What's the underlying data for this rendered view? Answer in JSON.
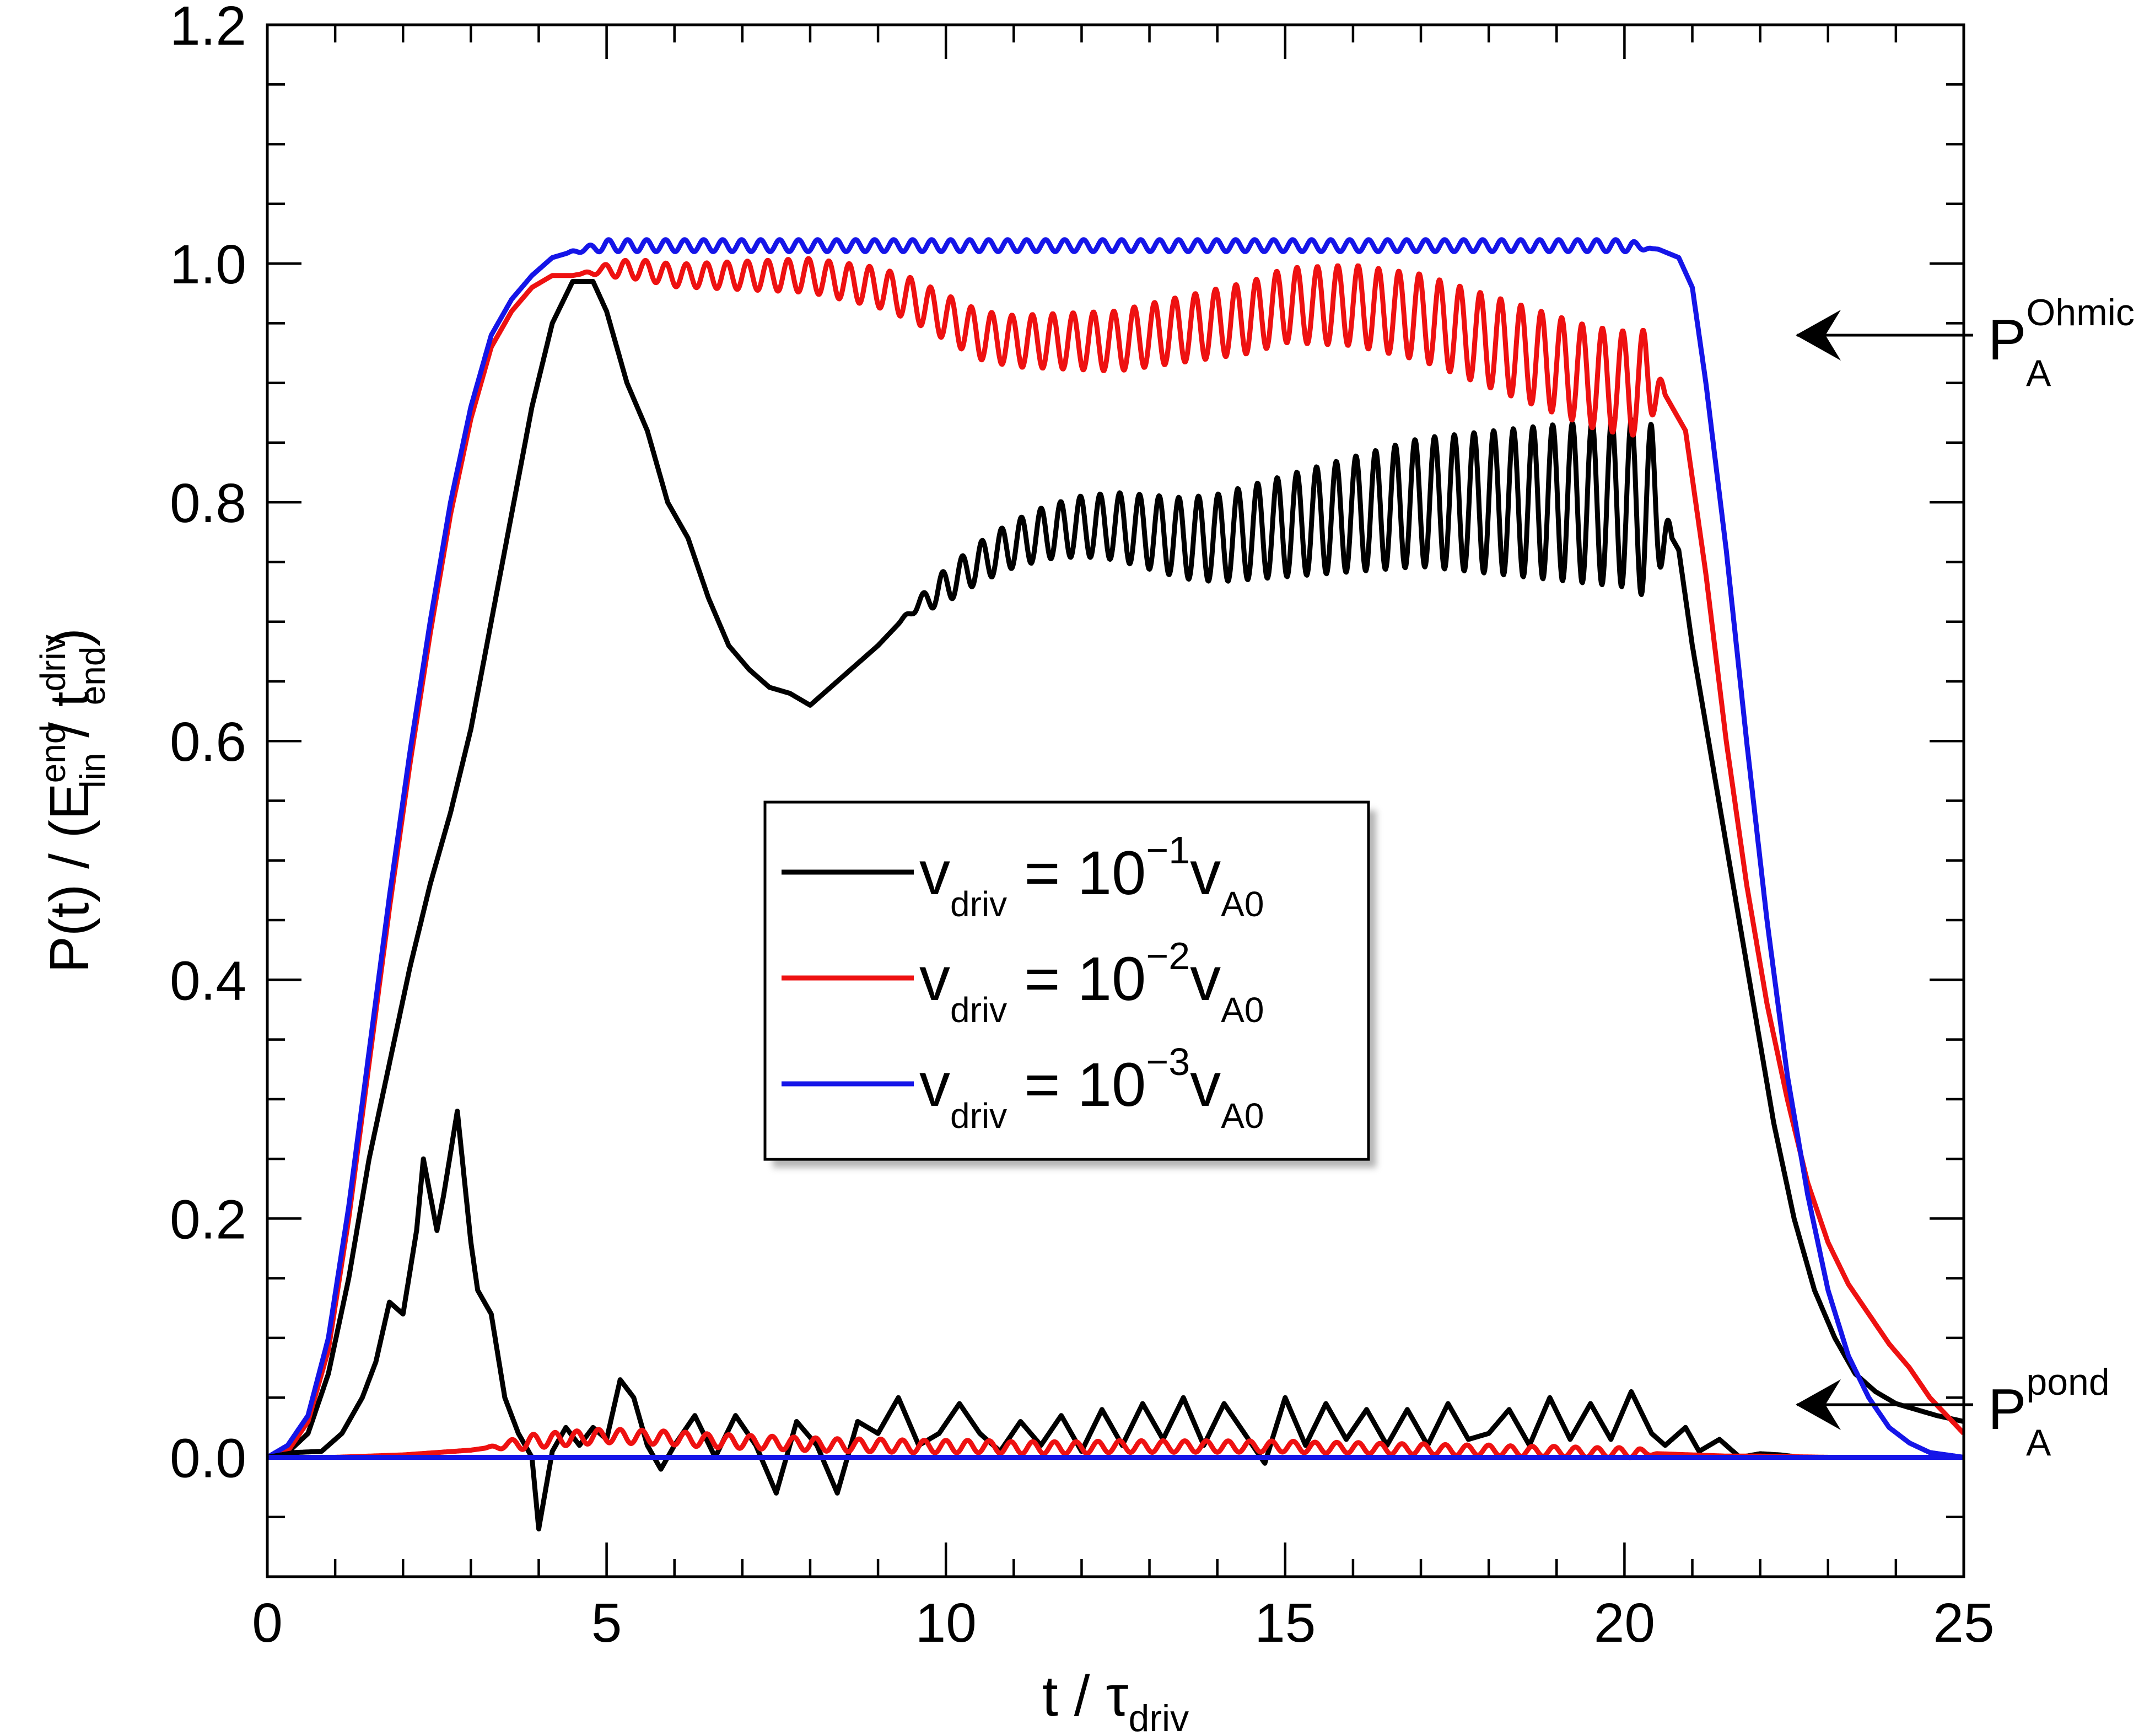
{
  "chart_data": {
    "type": "line",
    "xlabel": "t / τ",
    "xlabel_sub": "driv",
    "ylabel": {
      "p1": "P(t) / (E",
      "p1_sup": "end",
      "p1_sub": "lin",
      "p2": " / t",
      "p2_sup": "driv",
      "p2_sub": "end",
      "p3": ")"
    },
    "xlim": [
      0,
      25
    ],
    "ylim": [
      -0.1,
      1.2
    ],
    "xticks": [
      "0",
      "5",
      "10",
      "15",
      "20",
      "25"
    ],
    "yticks": [
      "0.0",
      "0.2",
      "0.4",
      "0.6",
      "0.8",
      "1.0",
      "1.2"
    ],
    "legend": {
      "location": "center",
      "entries": [
        {
          "color": "#000000",
          "base": "v",
          "sub": "driv",
          "eq": " = 10",
          "exp": "−1",
          "v": "v",
          "vsub": "A0"
        },
        {
          "color": "#ee1111",
          "base": "v",
          "sub": "driv",
          "eq": " = 10",
          "exp": "−2",
          "v": "v",
          "vsub": "A0"
        },
        {
          "color": "#1515e8",
          "base": "v",
          "sub": "driv",
          "eq": " = 10",
          "exp": "−3",
          "v": "v",
          "vsub": "A0"
        }
      ]
    },
    "annotations": [
      {
        "text": "P",
        "sub": "A",
        "sup": "Ohmic",
        "y": 0.94
      },
      {
        "text": "P",
        "sub": "A",
        "sup": "pond",
        "y": 0.045
      }
    ],
    "series": [
      {
        "name": "v_driv = 10^-1 v_A0 (Ohmic)",
        "color": "#000000",
        "x": [
          0,
          0.3,
          0.6,
          0.9,
          1.2,
          1.5,
          1.8,
          2.1,
          2.4,
          2.7,
          3.0,
          3.3,
          3.6,
          3.9,
          4.2,
          4.5,
          4.8,
          5.0,
          5.3,
          5.6,
          5.9,
          6.2,
          6.5,
          6.8,
          7.1,
          7.4,
          7.7,
          8.0,
          8.3,
          8.6,
          9.0,
          9.5,
          10.0,
          10.5,
          11.0,
          11.5,
          12.0,
          12.5,
          13.0,
          13.5,
          14.0,
          14.5,
          15.0,
          15.5,
          16.0,
          16.5,
          17.0,
          17.5,
          18.0,
          18.5,
          19.0,
          19.5,
          20.0,
          20.5,
          20.8,
          21.0,
          21.3,
          21.6,
          21.9,
          22.2,
          22.5,
          22.8,
          23.1,
          23.4,
          23.7,
          24.0,
          24.3,
          24.6,
          25.0
        ],
        "y": [
          0.0,
          0.004,
          0.02,
          0.07,
          0.15,
          0.25,
          0.33,
          0.41,
          0.48,
          0.54,
          0.61,
          0.7,
          0.79,
          0.88,
          0.95,
          0.985,
          0.985,
          0.96,
          0.9,
          0.86,
          0.8,
          0.77,
          0.72,
          0.68,
          0.66,
          0.645,
          0.64,
          0.63,
          0.645,
          0.66,
          0.68,
          0.71,
          0.73,
          0.75,
          0.765,
          0.775,
          0.78,
          0.78,
          0.775,
          0.77,
          0.77,
          0.775,
          0.78,
          0.785,
          0.79,
          0.795,
          0.8,
          0.8,
          0.8,
          0.8,
          0.8,
          0.8,
          0.8,
          0.79,
          0.76,
          0.68,
          0.58,
          0.48,
          0.38,
          0.28,
          0.2,
          0.14,
          0.1,
          0.07,
          0.055,
          0.045,
          0.04,
          0.035,
          0.03
        ],
        "osc": [
          {
            "x0": 9.3,
            "x1": 20.7,
            "amp0": 0.01,
            "amp1": 0.075,
            "period": 0.29
          }
        ]
      },
      {
        "name": "v_driv = 10^-2 v_A0 (Ohmic)",
        "color": "#ee1111",
        "x": [
          0,
          0.3,
          0.6,
          0.9,
          1.2,
          1.5,
          1.8,
          2.1,
          2.4,
          2.7,
          3.0,
          3.3,
          3.6,
          3.9,
          4.2,
          4.5,
          5.0,
          5.5,
          6.0,
          6.5,
          7.0,
          7.5,
          8.0,
          8.5,
          9.0,
          9.5,
          10.0,
          10.5,
          11.0,
          11.5,
          12.0,
          12.5,
          13.0,
          13.5,
          14.0,
          14.5,
          15.0,
          15.5,
          16.0,
          16.5,
          17.0,
          17.5,
          18.0,
          18.5,
          19.0,
          19.5,
          20.0,
          20.5,
          20.9,
          21.2,
          21.5,
          21.8,
          22.1,
          22.4,
          22.7,
          23.0,
          23.3,
          23.6,
          23.9,
          24.2,
          24.5,
          25.0
        ],
        "y": [
          0.0,
          0.005,
          0.03,
          0.09,
          0.2,
          0.33,
          0.46,
          0.58,
          0.69,
          0.79,
          0.87,
          0.93,
          0.96,
          0.98,
          0.99,
          0.99,
          0.995,
          0.995,
          0.99,
          0.99,
          0.99,
          0.99,
          0.99,
          0.985,
          0.98,
          0.97,
          0.955,
          0.94,
          0.935,
          0.935,
          0.935,
          0.935,
          0.94,
          0.945,
          0.95,
          0.955,
          0.965,
          0.965,
          0.965,
          0.96,
          0.955,
          0.945,
          0.935,
          0.925,
          0.915,
          0.905,
          0.9,
          0.9,
          0.86,
          0.74,
          0.6,
          0.48,
          0.38,
          0.3,
          0.23,
          0.18,
          0.145,
          0.12,
          0.095,
          0.075,
          0.05,
          0.02
        ],
        "osc": [
          {
            "x0": 4.6,
            "x1": 20.6,
            "amp0": 0.006,
            "amp1": 0.045,
            "period": 0.3
          }
        ]
      },
      {
        "name": "v_driv = 10^-3 v_A0 (Ohmic)",
        "color": "#1515e8",
        "x": [
          0,
          0.3,
          0.6,
          0.9,
          1.2,
          1.5,
          1.8,
          2.1,
          2.4,
          2.7,
          3.0,
          3.3,
          3.6,
          3.9,
          4.2,
          4.5,
          5.0,
          6.0,
          7.0,
          8.0,
          9.0,
          10.0,
          11.0,
          12.0,
          13.0,
          14.0,
          15.0,
          16.0,
          17.0,
          18.0,
          19.0,
          20.0,
          20.5,
          20.8,
          21.0,
          21.2,
          21.5,
          21.8,
          22.1,
          22.4,
          22.7,
          23.0,
          23.3,
          23.6,
          23.9,
          24.2,
          24.5,
          25.0
        ],
        "y": [
          0.0,
          0.01,
          0.035,
          0.1,
          0.21,
          0.34,
          0.47,
          0.59,
          0.7,
          0.8,
          0.88,
          0.94,
          0.97,
          0.99,
          1.005,
          1.01,
          1.015,
          1.015,
          1.015,
          1.015,
          1.015,
          1.015,
          1.015,
          1.015,
          1.015,
          1.015,
          1.015,
          1.015,
          1.015,
          1.015,
          1.015,
          1.015,
          1.012,
          1.005,
          0.98,
          0.9,
          0.76,
          0.6,
          0.45,
          0.32,
          0.22,
          0.14,
          0.085,
          0.05,
          0.025,
          0.012,
          0.004,
          0.0
        ],
        "osc": [
          {
            "x0": 4.4,
            "x1": 20.4,
            "amp0": 0.005,
            "amp1": 0.005,
            "period": 0.28
          }
        ]
      },
      {
        "name": "v_driv = 10^-1 v_A0 (pond)",
        "color": "#000000",
        "x": [
          0,
          0.4,
          0.8,
          1.1,
          1.4,
          1.6,
          1.8,
          2.0,
          2.2,
          2.3,
          2.5,
          2.6,
          2.8,
          3.0,
          3.1,
          3.3,
          3.5,
          3.7,
          3.9,
          4.0,
          4.2,
          4.4,
          4.6,
          4.8,
          5.0,
          5.2,
          5.4,
          5.6,
          5.8,
          6.0,
          6.3,
          6.6,
          6.9,
          7.2,
          7.5,
          7.8,
          8.1,
          8.4,
          8.7,
          9.0,
          9.3,
          9.6,
          9.9,
          10.2,
          10.5,
          10.8,
          11.1,
          11.4,
          11.7,
          12.0,
          12.3,
          12.6,
          12.9,
          13.2,
          13.5,
          13.8,
          14.1,
          14.4,
          14.7,
          15.0,
          15.3,
          15.6,
          15.9,
          16.2,
          16.5,
          16.8,
          17.1,
          17.4,
          17.7,
          18.0,
          18.3,
          18.6,
          18.9,
          19.2,
          19.5,
          19.8,
          20.1,
          20.4,
          20.6,
          20.9,
          21.1,
          21.4,
          21.7,
          22.0,
          22.3,
          22.6,
          22.9,
          23.2,
          23.5,
          24.0,
          24.5,
          25.0
        ],
        "y": [
          0.0,
          0.004,
          0.005,
          0.02,
          0.05,
          0.08,
          0.13,
          0.12,
          0.19,
          0.25,
          0.19,
          0.22,
          0.29,
          0.18,
          0.14,
          0.12,
          0.05,
          0.02,
          0.0,
          -0.06,
          0.005,
          0.025,
          0.01,
          0.025,
          0.015,
          0.065,
          0.05,
          0.01,
          -0.01,
          0.01,
          0.035,
          0.0,
          0.035,
          0.01,
          -0.03,
          0.03,
          0.01,
          -0.03,
          0.03,
          0.02,
          0.05,
          0.01,
          0.02,
          0.045,
          0.02,
          0.005,
          0.03,
          0.01,
          0.035,
          0.005,
          0.04,
          0.01,
          0.045,
          0.015,
          0.05,
          0.01,
          0.045,
          0.02,
          -0.005,
          0.05,
          0.01,
          0.045,
          0.015,
          0.04,
          0.01,
          0.04,
          0.01,
          0.045,
          0.015,
          0.02,
          0.04,
          0.01,
          0.05,
          0.015,
          0.045,
          0.015,
          0.055,
          0.02,
          0.01,
          0.025,
          0.005,
          0.015,
          0.0,
          0.003,
          0.002,
          0.0,
          0.0,
          0.0,
          0.0,
          0.0,
          0.0,
          0.0
        ],
        "osc": []
      },
      {
        "name": "v_driv = 10^-2 v_A0 (pond)",
        "color": "#ee1111",
        "x": [
          0,
          1.0,
          2.0,
          3.0,
          3.5,
          4.0,
          4.5,
          5.0,
          5.5,
          6.0,
          6.5,
          7.0,
          7.5,
          8.0,
          8.5,
          9.0,
          9.5,
          10.0,
          10.5,
          11.0,
          11.5,
          12.0,
          12.5,
          13.0,
          13.5,
          14.0,
          14.5,
          15.0,
          15.5,
          16.0,
          16.5,
          17.0,
          17.5,
          18.0,
          18.5,
          19.0,
          19.5,
          20.0,
          20.5,
          21.0,
          21.5,
          22.0,
          23.0,
          25.0
        ],
        "y": [
          0.0,
          0.0,
          0.002,
          0.006,
          0.01,
          0.014,
          0.016,
          0.018,
          0.017,
          0.016,
          0.014,
          0.013,
          0.012,
          0.011,
          0.01,
          0.01,
          0.009,
          0.009,
          0.009,
          0.008,
          0.008,
          0.008,
          0.009,
          0.009,
          0.009,
          0.009,
          0.009,
          0.009,
          0.008,
          0.008,
          0.007,
          0.007,
          0.006,
          0.006,
          0.005,
          0.005,
          0.004,
          0.004,
          0.003,
          0.002,
          0.001,
          0.001,
          0.0,
          0.0
        ],
        "osc": [
          {
            "x0": 3.2,
            "x1": 20.5,
            "amp0": 0.006,
            "amp1": 0.004,
            "period": 0.32
          }
        ]
      },
      {
        "name": "v_driv = 10^-3 v_A0 (pond)",
        "color": "#1515e8",
        "x": [
          0,
          25
        ],
        "y": [
          0.0,
          0.0
        ],
        "osc": []
      }
    ]
  }
}
